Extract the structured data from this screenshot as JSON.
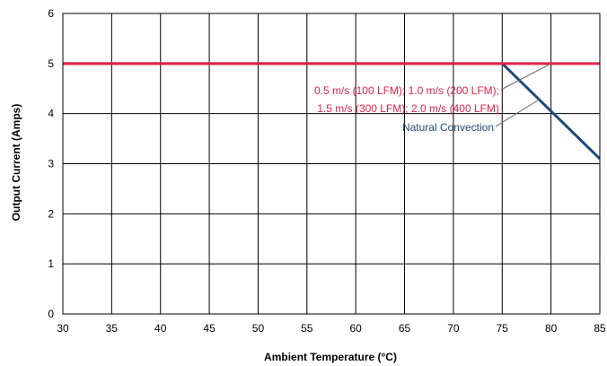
{
  "chart_data": {
    "type": "line",
    "xlabel": "Ambient Temperature (°C)",
    "ylabel": "Output Current (Amps)",
    "xlim": [
      30,
      85
    ],
    "ylim": [
      0,
      6
    ],
    "xticks": [
      30,
      35,
      40,
      45,
      50,
      55,
      60,
      65,
      70,
      75,
      80,
      85
    ],
    "yticks": [
      0,
      1,
      2,
      3,
      4,
      5,
      6
    ],
    "grid": true,
    "series": [
      {
        "name": "0.5 m/s (100 LFM); 1.0 m/s (200 LFM); 1.5 m/s (300 LFM); 2.0 m/s (400 LFM)",
        "color": "#e0234b",
        "x": [
          30,
          85
        ],
        "y": [
          5,
          5
        ]
      },
      {
        "name": "Natural Convection",
        "color": "#1e4a7c",
        "x": [
          30,
          75,
          85
        ],
        "y": [
          5,
          5,
          3.1
        ]
      }
    ],
    "annotations": [
      {
        "text": "0.5 m/s (100 LFM); 1.0 m/s (200 LFM);",
        "color": "#e0234b"
      },
      {
        "text": "1.5 m/s (300 LFM); 2.0 m/s (400 LFM)",
        "color": "#e0234b"
      },
      {
        "text": "Natural Convection",
        "color": "#1e4a7c"
      }
    ]
  }
}
